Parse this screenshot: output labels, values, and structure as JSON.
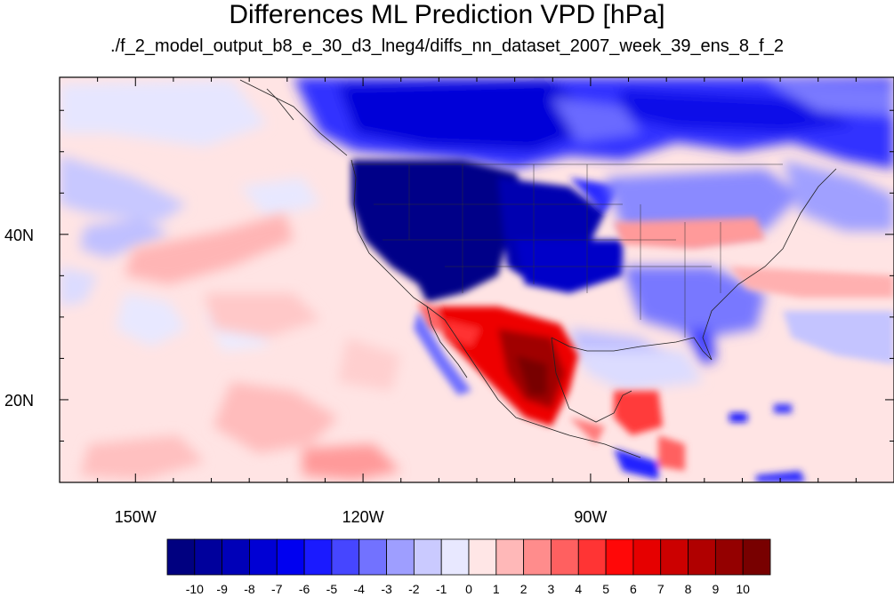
{
  "title": "Differences ML Prediction VPD [hPa]",
  "subtitle": "./f_2_model_output_b8_e_30_d3_lneg4/diffs_nn_dataset_2007_week_39_ens_8_f_2",
  "map": {
    "lon_range": [
      -160,
      -50
    ],
    "lat_range": [
      10,
      59
    ],
    "lon_ticks": [
      {
        "value": -150,
        "label": "150W"
      },
      {
        "value": -120,
        "label": "120W"
      },
      {
        "value": -90,
        "label": "90W"
      }
    ],
    "lat_ticks": [
      {
        "value": 40,
        "label": "40N"
      },
      {
        "value": 20,
        "label": "20N"
      }
    ]
  },
  "colorbar": {
    "labels": [
      "-10",
      "-9",
      "-8",
      "-7",
      "-6",
      "-5",
      "-4",
      "-3",
      "-2",
      "-1",
      "0",
      "1",
      "2",
      "3",
      "4",
      "5",
      "6",
      "7",
      "8",
      "9",
      "10"
    ],
    "colors": [
      "#000080",
      "#00009c",
      "#0000b8",
      "#0000d4",
      "#0000f0",
      "#1a1aff",
      "#4646ff",
      "#7272ff",
      "#9e9eff",
      "#cacaff",
      "#e8e8ff",
      "#ffe6e6",
      "#ffb8b8",
      "#ff8c8c",
      "#ff6060",
      "#ff3434",
      "#ff0808",
      "#e60000",
      "#cc0000",
      "#b00000",
      "#940000",
      "#780000"
    ]
  },
  "chart_data": {
    "type": "heatmap",
    "title": "Differences ML Prediction VPD [hPa]",
    "subtitle": "./f_2_model_output_b8_e_30_d3_lneg4/diffs_nn_dataset_2007_week_39_ens_8_f_2",
    "x_axis": {
      "range": [
        -160,
        -50
      ],
      "ticks": [
        "150W",
        "120W",
        "90W"
      ]
    },
    "y_axis": {
      "range": [
        10,
        59
      ],
      "ticks": [
        "40N",
        "20N"
      ]
    },
    "colorbar_range": [
      -10,
      10
    ],
    "regions": [
      {
        "name": "Western US / Pacific Northwest",
        "approx_value": -10
      },
      {
        "name": "Northern Canada",
        "approx_value": -6
      },
      {
        "name": "Central US",
        "approx_value": -5
      },
      {
        "name": "Eastern US",
        "approx_value": -2
      },
      {
        "name": "Ohio Valley band",
        "approx_value": 2
      },
      {
        "name": "Mexico (western Sierra Madre)",
        "approx_value": 9
      },
      {
        "name": "Central America",
        "approx_value": 5
      },
      {
        "name": "Eastern Pacific",
        "approx_value": 1
      },
      {
        "name": "Gulf of Mexico",
        "approx_value": -1
      }
    ]
  }
}
